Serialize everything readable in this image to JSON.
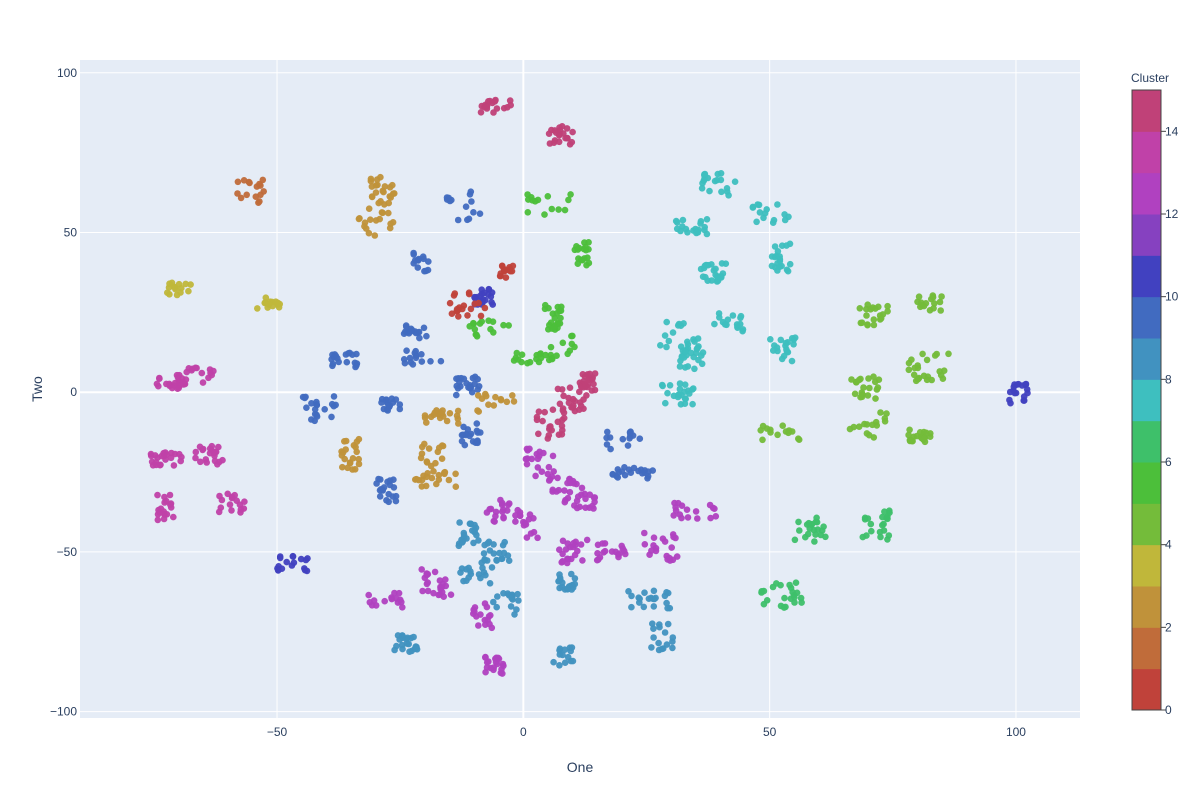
{
  "chart_data": {
    "type": "scatter",
    "xlabel": "One",
    "ylabel": "Two",
    "xlim": [
      -90,
      113
    ],
    "ylim": [
      -102,
      104
    ],
    "xticks": [
      -50,
      0,
      50,
      100
    ],
    "yticks": [
      -100,
      -50,
      0,
      50,
      100
    ],
    "grid": true,
    "colorbar": {
      "title": "Cluster",
      "range": [
        0,
        15
      ],
      "ticks": [
        0,
        2,
        4,
        6,
        8,
        10,
        12,
        14
      ],
      "colors": [
        "#c0423a",
        "#c06c3a",
        "#c0923a",
        "#c0b73a",
        "#74bc3a",
        "#4cbf3a",
        "#3ec06a",
        "#3ebfbf",
        "#4192c0",
        "#416bc0",
        "#4141c0",
        "#8641c0",
        "#b041c0",
        "#c041a8",
        "#c04178"
      ]
    },
    "clusters": [
      {
        "x": -5.7,
        "y": 89.6,
        "c": 14
      },
      {
        "x": 7.6,
        "y": 80.4,
        "c": 14
      },
      {
        "x": -55.4,
        "y": 62.5,
        "c": 1
      },
      {
        "x": -69.3,
        "y": 32.2,
        "c": 3
      },
      {
        "x": -51.9,
        "y": 28.1,
        "c": 3
      },
      {
        "x": -29.9,
        "y": 53.3,
        "c": 2
      },
      {
        "x": -20.3,
        "y": 40.6,
        "c": 9
      },
      {
        "x": -28.7,
        "y": 63.3,
        "c": 2
      },
      {
        "x": -21.9,
        "y": 18.8,
        "c": 9
      },
      {
        "x": -11.6,
        "y": 58.4,
        "c": 9
      },
      {
        "x": -3.6,
        "y": 37.7,
        "c": 0
      },
      {
        "x": -8.0,
        "y": 29.4,
        "c": 10
      },
      {
        "x": 5.2,
        "y": 58.2,
        "c": 5
      },
      {
        "x": 11.7,
        "y": 43.3,
        "c": 5
      },
      {
        "x": 39.4,
        "y": 65.2,
        "c": 7
      },
      {
        "x": 34.0,
        "y": 51.8,
        "c": 7
      },
      {
        "x": 50.6,
        "y": 55.4,
        "c": 7
      },
      {
        "x": 38.6,
        "y": 37.6,
        "c": 7
      },
      {
        "x": 52.4,
        "y": 42.2,
        "c": 7
      },
      {
        "x": 71.3,
        "y": 24.3,
        "c": 4
      },
      {
        "x": 82.6,
        "y": 27.9,
        "c": 4
      },
      {
        "x": 82.3,
        "y": 7.7,
        "c": 4
      },
      {
        "x": 6.1,
        "y": 23.5,
        "c": 5
      },
      {
        "x": 0.9,
        "y": 10.6,
        "c": 5
      },
      {
        "x": 7.7,
        "y": 14.2,
        "c": 5
      },
      {
        "x": -6.9,
        "y": 19.8,
        "c": 5
      },
      {
        "x": -11.1,
        "y": 27.7,
        "c": 0
      },
      {
        "x": -71.6,
        "y": 3.2,
        "c": 13
      },
      {
        "x": -65.8,
        "y": 5.0,
        "c": 13
      },
      {
        "x": -36.4,
        "y": 10.2,
        "c": 9
      },
      {
        "x": -20.2,
        "y": 10.7,
        "c": 9
      },
      {
        "x": -41.4,
        "y": -5.3,
        "c": 9
      },
      {
        "x": -27.2,
        "y": -3.9,
        "c": 9
      },
      {
        "x": -17.0,
        "y": -7.6,
        "c": 2
      },
      {
        "x": -11.3,
        "y": 2.1,
        "c": 9
      },
      {
        "x": -5.6,
        "y": -4.1,
        "c": 2
      },
      {
        "x": 10.0,
        "y": -1.9,
        "c": 14
      },
      {
        "x": 13.1,
        "y": 3.2,
        "c": 14
      },
      {
        "x": 5.6,
        "y": -9.9,
        "c": 14
      },
      {
        "x": -35.2,
        "y": -19.5,
        "c": 2
      },
      {
        "x": -18.5,
        "y": -19.6,
        "c": 2
      },
      {
        "x": -27.8,
        "y": -31.0,
        "c": 9
      },
      {
        "x": -17.8,
        "y": -27.5,
        "c": 2
      },
      {
        "x": -10.5,
        "y": -13.4,
        "c": 9
      },
      {
        "x": -72.2,
        "y": -20.9,
        "c": 13
      },
      {
        "x": -63.8,
        "y": -20.0,
        "c": 13
      },
      {
        "x": -73.0,
        "y": -35.9,
        "c": 13
      },
      {
        "x": -59.2,
        "y": -34.7,
        "c": 13
      },
      {
        "x": -46.9,
        "y": -53.7,
        "c": 10
      },
      {
        "x": 31.6,
        "y": 17.1,
        "c": 7
      },
      {
        "x": 41.6,
        "y": 21.3,
        "c": 7
      },
      {
        "x": 34.0,
        "y": 11.7,
        "c": 7
      },
      {
        "x": 52.6,
        "y": 13.0,
        "c": 7
      },
      {
        "x": 31.4,
        "y": -0.6,
        "c": 7
      },
      {
        "x": 51.9,
        "y": -12.5,
        "c": 4
      },
      {
        "x": 69.4,
        "y": 1.5,
        "c": 4
      },
      {
        "x": 69.9,
        "y": -10.0,
        "c": 4
      },
      {
        "x": 80.6,
        "y": -13.7,
        "c": 4
      },
      {
        "x": 100.5,
        "y": -0.1,
        "c": 10
      },
      {
        "x": 3.3,
        "y": -22.2,
        "c": 12
      },
      {
        "x": 8.9,
        "y": -29.6,
        "c": 12
      },
      {
        "x": 11.8,
        "y": -34.1,
        "c": 12
      },
      {
        "x": 20.1,
        "y": -15.0,
        "c": 9
      },
      {
        "x": 22.2,
        "y": -25.5,
        "c": 9
      },
      {
        "x": 58.1,
        "y": -43.4,
        "c": 6
      },
      {
        "x": 71.6,
        "y": -41.4,
        "c": 6
      },
      {
        "x": 52.3,
        "y": -64.2,
        "c": 6
      },
      {
        "x": -4.5,
        "y": -37.1,
        "c": 12
      },
      {
        "x": 0.8,
        "y": -41.5,
        "c": 12
      },
      {
        "x": 17.9,
        "y": -50.0,
        "c": 12
      },
      {
        "x": 10.1,
        "y": -49.9,
        "c": 12
      },
      {
        "x": 34.7,
        "y": -37.6,
        "c": 12
      },
      {
        "x": 27.8,
        "y": -48.3,
        "c": 12
      },
      {
        "x": -11.0,
        "y": -44.8,
        "c": 8
      },
      {
        "x": -5.9,
        "y": -50.2,
        "c": 8
      },
      {
        "x": -9.8,
        "y": -57.1,
        "c": 8
      },
      {
        "x": -3.7,
        "y": -66.2,
        "c": 8
      },
      {
        "x": 8.8,
        "y": -59.7,
        "c": 8
      },
      {
        "x": 25.8,
        "y": -64.8,
        "c": 8
      },
      {
        "x": 28.1,
        "y": -76.4,
        "c": 8
      },
      {
        "x": -28.1,
        "y": -65.1,
        "c": 12
      },
      {
        "x": -17.5,
        "y": -60.2,
        "c": 12
      },
      {
        "x": -8.1,
        "y": -69.8,
        "c": 12
      },
      {
        "x": -5.9,
        "y": -85.5,
        "c": 12
      },
      {
        "x": -23.8,
        "y": -78.5,
        "c": 8
      },
      {
        "x": 7.8,
        "y": -83.5,
        "c": 8
      }
    ]
  }
}
